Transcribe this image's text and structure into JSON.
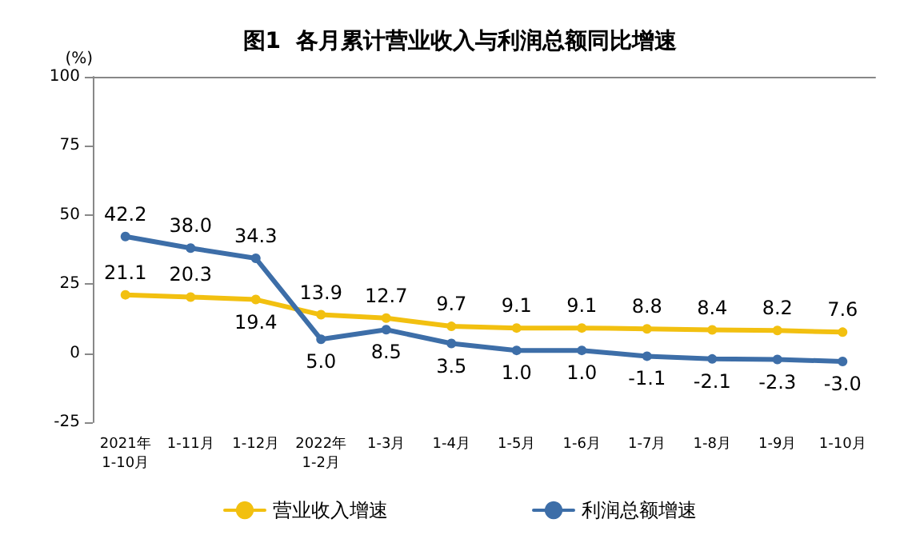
{
  "chart_data": {
    "type": "line",
    "title": "图1  各月累计营业收入与利润总额同比增速",
    "ylabel": "(%)",
    "categories": [
      "2021年\n1-10月",
      "1-11月",
      "1-12月",
      "2022年\n1-2月",
      "1-3月",
      "1-4月",
      "1-5月",
      "1-6月",
      "1-7月",
      "1-8月",
      "1-9月",
      "1-10月"
    ],
    "series": [
      {
        "name": "营业收入增速",
        "color": "#f2c010",
        "values": [
          21.1,
          20.3,
          19.4,
          13.9,
          12.7,
          9.7,
          9.1,
          9.1,
          8.8,
          8.4,
          8.2,
          7.6
        ],
        "value_labels": [
          "21.1",
          "20.3",
          "19.4",
          "13.9",
          "12.7",
          "9.7",
          "9.1",
          "9.1",
          "8.8",
          "8.4",
          "8.2",
          "7.6"
        ]
      },
      {
        "name": "利润总额增速",
        "color": "#3d6ea8",
        "values": [
          42.2,
          38.0,
          34.3,
          5.0,
          8.5,
          3.5,
          1.0,
          1.0,
          -1.1,
          -2.1,
          -2.3,
          -3.0
        ],
        "value_labels": [
          "42.2",
          "38.0",
          "34.3",
          "5.0",
          "8.5",
          "3.5",
          "1.0",
          "1.0",
          "-1.1",
          "-2.1",
          "-2.3",
          "-3.0"
        ]
      }
    ],
    "ylim": [
      -25,
      100
    ],
    "yticks": [
      -25,
      0,
      25,
      50,
      75,
      100
    ],
    "grid": false,
    "legend": "bottom",
    "marker": "circle",
    "line_style": "solid"
  }
}
